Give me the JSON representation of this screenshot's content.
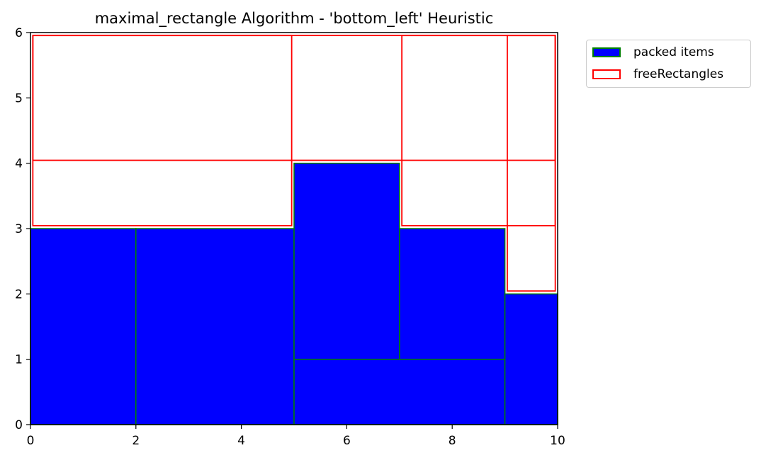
{
  "chart_data": {
    "type": "bar",
    "title": "maximal_rectangle Algorithm - 'bottom_left' Heuristic",
    "xlabel": "",
    "ylabel": "",
    "xlim": [
      0,
      10
    ],
    "ylim": [
      0,
      6
    ],
    "xticks": [
      "0",
      "2",
      "4",
      "6",
      "8",
      "10"
    ],
    "yticks": [
      "0",
      "1",
      "2",
      "3",
      "4",
      "5",
      "6"
    ],
    "grid": false,
    "legend_position": "outside-top-right",
    "series": [
      {
        "name": "packed items",
        "fill": "#0000ff",
        "edge": "#008000",
        "rects": [
          {
            "x": 0,
            "y": 0,
            "w": 2,
            "h": 3
          },
          {
            "x": 2,
            "y": 0,
            "w": 3,
            "h": 3
          },
          {
            "x": 5,
            "y": 0,
            "w": 4,
            "h": 1
          },
          {
            "x": 5,
            "y": 1,
            "w": 2,
            "h": 3
          },
          {
            "x": 7,
            "y": 1,
            "w": 2,
            "h": 2
          },
          {
            "x": 9,
            "y": 0,
            "w": 1,
            "h": 2
          }
        ]
      },
      {
        "name": "freeRectangles",
        "fill": "none",
        "edge": "#ff0000",
        "rects": [
          {
            "x": 0,
            "y": 3,
            "w": 5,
            "h": 3
          },
          {
            "x": 0,
            "y": 4,
            "w": 10,
            "h": 2
          },
          {
            "x": 7,
            "y": 3,
            "w": 3,
            "h": 3
          },
          {
            "x": 9,
            "y": 2,
            "w": 1,
            "h": 4
          }
        ]
      }
    ]
  }
}
